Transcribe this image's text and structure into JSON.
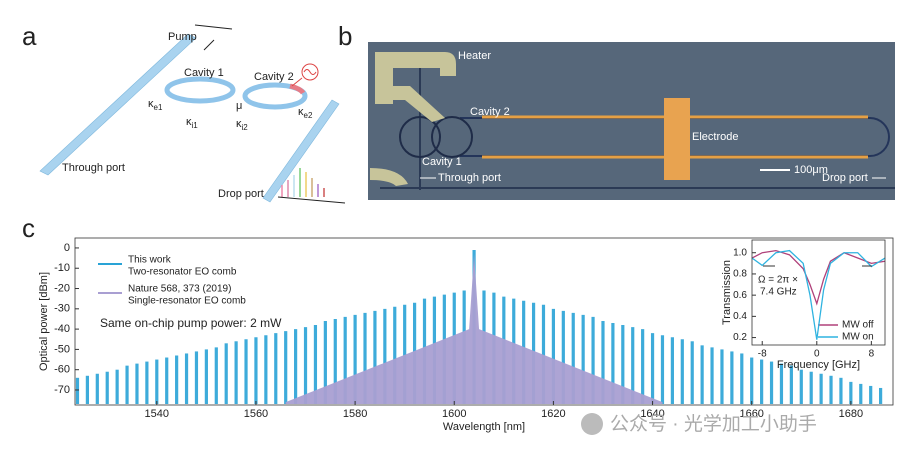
{
  "panel_labels": [
    "a",
    "b",
    "c"
  ],
  "panel_a": {
    "pump": "Pump",
    "cavities": [
      "Cavity 1",
      "Cavity 2"
    ],
    "coupling_mu": "μ",
    "couplings": [
      {
        "symbol": "κ",
        "sub": "e1"
      },
      {
        "symbol": "κ",
        "sub": "i1"
      },
      {
        "symbol": "κ",
        "sub": "i2"
      },
      {
        "symbol": "κ",
        "sub": "e2"
      }
    ],
    "through_port": "Through port",
    "drop_port": "Drop port"
  },
  "panel_b": {
    "heater": "Heater",
    "cavity_2": "Cavity 2",
    "cavity_1": "Cavity 1",
    "electrode": "Electrode",
    "scale_bar": "100μm",
    "through_port": "Through port",
    "drop_port": "Drop port"
  },
  "chart_data": [
    {
      "type": "spectrum",
      "xlabel": "Wavelength [nm]",
      "ylabel": "Optical power [dBm]",
      "annotation": "Same on-chip pump power: 2 mW",
      "xlim": [
        1523.5,
        1688.5
      ],
      "ylim": [
        -77.4,
        4.9
      ],
      "xticks": [
        1540,
        1560,
        1580,
        1600,
        1620,
        1640,
        1660,
        1680
      ],
      "yticks": [
        0,
        -10,
        -20,
        -30,
        -40,
        -50,
        -60,
        -70
      ],
      "series": [
        {
          "name": "This work",
          "legend_note": "Two-resonator EO comb",
          "color": "#29a3d6",
          "x": [
            1524,
            1526,
            1528,
            1530,
            1532,
            1534,
            1536,
            1538,
            1540,
            1542,
            1544,
            1546,
            1548,
            1550,
            1552,
            1554,
            1556,
            1558,
            1560,
            1562,
            1564,
            1566,
            1568,
            1570,
            1572,
            1574,
            1576,
            1578,
            1580,
            1582,
            1584,
            1586,
            1588,
            1590,
            1592,
            1594,
            1596,
            1598,
            1600,
            1602,
            1604,
            1606,
            1608,
            1610,
            1612,
            1614,
            1616,
            1618,
            1620,
            1622,
            1624,
            1626,
            1628,
            1630,
            1632,
            1634,
            1636,
            1638,
            1640,
            1642,
            1644,
            1646,
            1648,
            1650,
            1652,
            1654,
            1656,
            1658,
            1660,
            1662,
            1664,
            1666,
            1668,
            1670,
            1672,
            1674,
            1676,
            1678,
            1680,
            1682,
            1684,
            1686
          ],
          "values": [
            -64,
            -63,
            -62,
            -61,
            -60,
            -58,
            -57,
            -56,
            -55,
            -54,
            -53,
            -52,
            -51,
            -50,
            -49,
            -47,
            -46,
            -45,
            -44,
            -43,
            -42,
            -41,
            -40,
            -39,
            -38,
            -36,
            -35,
            -34,
            -33,
            -32,
            -31,
            -30,
            -29,
            -28,
            -27,
            -25,
            -24,
            -23,
            -22,
            -21,
            -1,
            -21,
            -22,
            -24,
            -25,
            -26,
            -27,
            -28,
            -30,
            -31,
            -32,
            -33,
            -34,
            -36,
            -37,
            -38,
            -39,
            -40,
            -42,
            -43,
            -44,
            -45,
            -46,
            -48,
            -49,
            -50,
            -51,
            -52,
            -54,
            -55,
            -56,
            -57,
            -58,
            -60,
            -61,
            -62,
            -63,
            -64,
            -66,
            -67,
            -68,
            -69
          ]
        },
        {
          "name": "Nature 568, 373 (2019)",
          "legend_note": "Single-resonator EO comb",
          "color": "#a99fd2",
          "x": [
            1566,
            1603,
            1604,
            1605,
            1642
          ],
          "values": [
            -76,
            -40,
            -3,
            -40,
            -76
          ]
        }
      ]
    },
    {
      "type": "line",
      "xlabel": "Frequency  [GHz]",
      "ylabel": "Transmission",
      "annotations": [
        "Ω = 2π ×",
        "7.4 GHz"
      ],
      "xlim": [
        -9.5,
        10
      ],
      "ylim": [
        0.13,
        1.12
      ],
      "xticks": [
        -8,
        0,
        8
      ],
      "yticks": [
        0.2,
        0.4,
        0.6,
        0.8,
        {
          "value": 1,
          "label": "1.0"
        }
      ],
      "series": [
        {
          "name": "MW off",
          "color": "#b0417a",
          "x": [
            -9.5,
            -8,
            -6,
            -4,
            -2,
            -1,
            0,
            1,
            2,
            4,
            6,
            8,
            10
          ],
          "values": [
            0.95,
            1.0,
            1.02,
            0.98,
            0.85,
            0.7,
            0.52,
            0.75,
            0.92,
            1.0,
            0.95,
            0.9,
            0.92
          ]
        },
        {
          "name": "MW on",
          "color": "#2fb3e0",
          "x": [
            -9.5,
            -8,
            -6,
            -4,
            -2,
            -1,
            0,
            1,
            2,
            4,
            6,
            8,
            10
          ],
          "values": [
            0.95,
            0.88,
            1.0,
            1.02,
            0.9,
            0.6,
            0.18,
            0.65,
            0.9,
            1.0,
            1.0,
            0.87,
            0.95
          ]
        }
      ]
    }
  ],
  "watermark": "公众号 · 光学加工小助手"
}
